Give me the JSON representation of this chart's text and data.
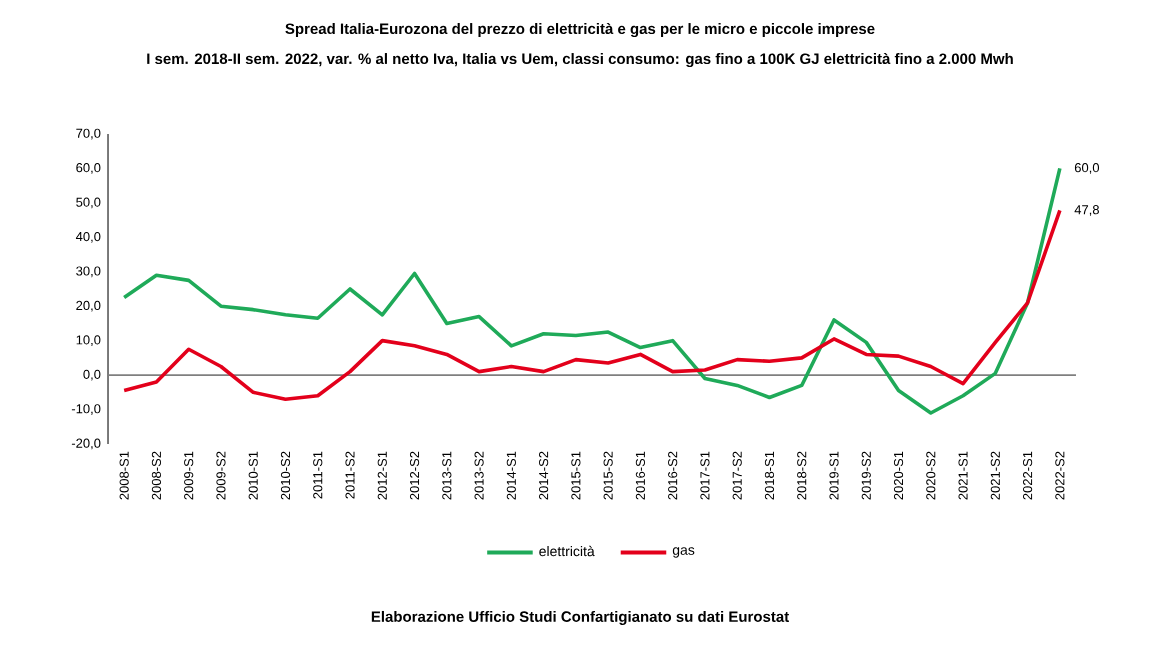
{
  "chart_data": {
    "type": "line",
    "title": "Spread Italia-Eurozona del prezzo di elettricità e gas per le micro e piccole imprese",
    "subtitle": "I sem. 2018-II sem. 2022, var. % al netto Iva, Italia vs Uem, classi consumo: gas fino a 100K GJ elettricità fino a 2.000 Mwh",
    "categories": [
      "2008-S1",
      "2008-S2",
      "2009-S1",
      "2009-S2",
      "2010-S1",
      "2010-S2",
      "2011-S1",
      "2011-S2",
      "2012-S1",
      "2012-S2",
      "2013-S1",
      "2013-S2",
      "2014-S1",
      "2014-S2",
      "2015-S1",
      "2015-S2",
      "2016-S1",
      "2016-S2",
      "2017-S1",
      "2017-S2",
      "2018-S1",
      "2018-S2",
      "2019-S1",
      "2019-S2",
      "2020-S1",
      "2020-S2",
      "2021-S1",
      "2021-S2",
      "2022-S1",
      "2022-S2"
    ],
    "series": [
      {
        "name": "elettricità",
        "color": "#1faa59",
        "values": [
          22.5,
          29,
          27.5,
          20,
          19,
          17.5,
          16.5,
          25,
          17.5,
          29.5,
          15,
          17,
          8.5,
          12,
          11.5,
          12.5,
          8,
          10,
          -1,
          -3,
          -6.5,
          -3,
          16,
          9.5,
          -4.5,
          -11,
          -6,
          0.5,
          21,
          60
        ],
        "value_labels": [
          null,
          null,
          null,
          null,
          null,
          null,
          null,
          null,
          null,
          null,
          null,
          null,
          null,
          null,
          null,
          null,
          null,
          null,
          null,
          null,
          null,
          null,
          null,
          null,
          null,
          null,
          null,
          null,
          null,
          "60,0"
        ]
      },
      {
        "name": "gas",
        "color": "#e3001b",
        "values": [
          -4.5,
          -2,
          7.5,
          2.5,
          -5,
          -7,
          -6,
          1,
          10,
          8.5,
          6,
          1,
          2.5,
          1,
          4.5,
          3.5,
          6,
          1,
          1.5,
          4.5,
          4,
          5,
          10.5,
          6,
          5.5,
          2.5,
          -2.5,
          9.5,
          21,
          47.8
        ],
        "value_labels": [
          null,
          null,
          null,
          null,
          null,
          null,
          null,
          null,
          null,
          null,
          null,
          null,
          null,
          null,
          null,
          null,
          null,
          null,
          null,
          null,
          null,
          null,
          null,
          null,
          null,
          null,
          null,
          null,
          null,
          "47,8"
        ]
      }
    ],
    "ylim": [
      -20,
      70
    ],
    "yticks": [
      {
        "value": -20,
        "label": "-20,0"
      },
      {
        "value": -10,
        "label": "-10,0"
      },
      {
        "value": 0,
        "label": "0,0"
      },
      {
        "value": 10,
        "label": "10,0"
      },
      {
        "value": 20,
        "label": "20,0"
      },
      {
        "value": 30,
        "label": "30,0"
      },
      {
        "value": 40,
        "label": "40,0"
      },
      {
        "value": 50,
        "label": "50,0"
      },
      {
        "value": 60,
        "label": "60,0"
      },
      {
        "value": 70,
        "label": "70,0"
      }
    ],
    "ref_lines": [
      {
        "axis": "y",
        "value": 0,
        "color": "#7f7f7f"
      }
    ],
    "grid": false,
    "legend": "bottom",
    "marker": "none",
    "line_style": "solid",
    "annotations": [
      "Elaborazione Ufficio Studi Confartigianato su dati Eurostat"
    ]
  }
}
